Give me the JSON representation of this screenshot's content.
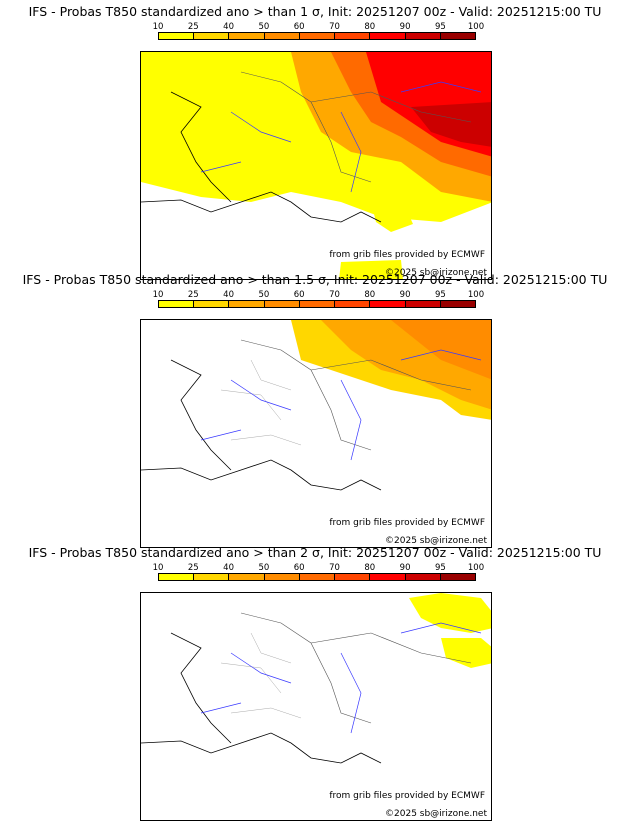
{
  "colors": {
    "levels": [
      "#ffff00",
      "#ffd700",
      "#ffa800",
      "#ff8c00",
      "#ff6a00",
      "#ff4500",
      "#ff0000",
      "#cc0000",
      "#990000",
      "#660000"
    ],
    "rivers": "#3a3aff",
    "borders": "#9a9a9a",
    "coast": "#000000"
  },
  "scale": {
    "labels": [
      "10",
      "25",
      "40",
      "50",
      "60",
      "70",
      "80",
      "90",
      "95",
      "100"
    ]
  },
  "panels": [
    {
      "title": "IFS - Probas T850  standardized ano > than 1 σ, Init: 20251207 00z - Valid: 20251215:00 TU",
      "credit_source": "from grib files provided by ECMWF",
      "credit_copyright": "©2025 sb@irizone.net"
    },
    {
      "title": "IFS - Probas T850  standardized ano > than 1.5 σ, Init: 20251207 00z - Valid: 20251215:00 TU",
      "credit_source": "from grib files provided by ECMWF",
      "credit_copyright": "©2025 sb@irizone.net"
    },
    {
      "title": "IFS - Probas T850  standardized ano > than 2 σ, Init: 20251207 00z - Valid: 20251215:00 TU",
      "credit_source": "from grib files provided by ECMWF",
      "credit_copyright": "©2025 sb@irizone.net"
    }
  ]
}
